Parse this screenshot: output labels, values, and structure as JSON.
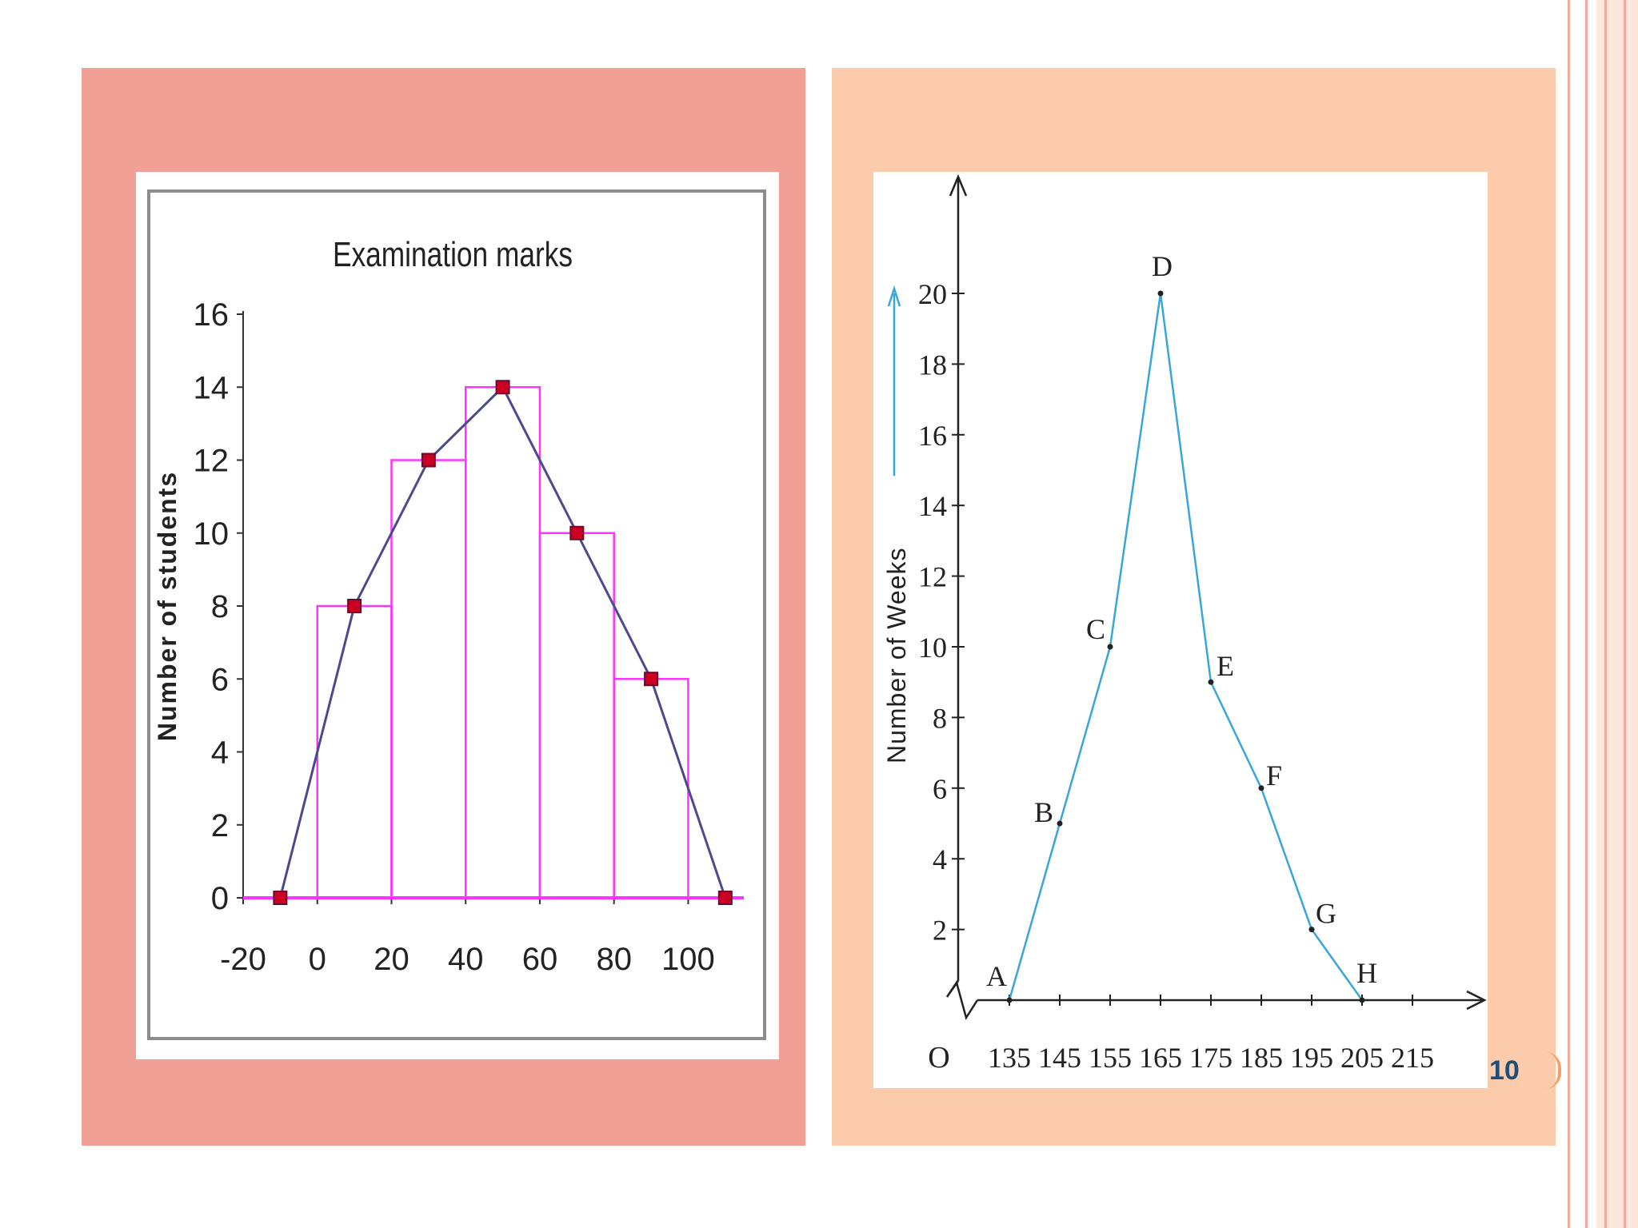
{
  "colors": {
    "page_background": "#ffffff",
    "left_panel": "#f0a094",
    "right_panel": "#fbcbab",
    "edge_lines": "#f0a090",
    "histogram_bars": "#ff33ff",
    "polygon_line": "#4a4a8c",
    "polygon_markers": "#cc0022",
    "weeks_line": "#3aa6d8",
    "page_number": "#1f4e79"
  },
  "slide": {
    "page_number": "10"
  },
  "chart_data": [
    {
      "type": "bar",
      "title": "Examination marks",
      "xlabel": "",
      "ylabel": "Number of students",
      "x_ticks": [
        "-20",
        "0",
        "20",
        "40",
        "60",
        "80",
        "100"
      ],
      "y_ticks": [
        "0",
        "2",
        "4",
        "6",
        "8",
        "10",
        "12",
        "14",
        "16"
      ],
      "xlim": [
        -20,
        115
      ],
      "ylim": [
        0,
        16
      ],
      "bars": [
        {
          "from": 0,
          "to": 20,
          "value": 8
        },
        {
          "from": 20,
          "to": 40,
          "value": 12
        },
        {
          "from": 40,
          "to": 60,
          "value": 14
        },
        {
          "from": 60,
          "to": 80,
          "value": 10
        },
        {
          "from": 80,
          "to": 100,
          "value": 6
        }
      ],
      "polygon": [
        {
          "x": -10,
          "y": 0
        },
        {
          "x": 10,
          "y": 8
        },
        {
          "x": 30,
          "y": 12
        },
        {
          "x": 50,
          "y": 14
        },
        {
          "x": 70,
          "y": 10
        },
        {
          "x": 90,
          "y": 6
        },
        {
          "x": 110,
          "y": 0
        }
      ],
      "grid": false
    },
    {
      "type": "line",
      "ylabel": "Number of Weeks",
      "origin_label": "O",
      "x_ticks": [
        "135",
        "145",
        "155",
        "165",
        "175",
        "185",
        "195",
        "205",
        "215"
      ],
      "y_ticks": [
        "2",
        "4",
        "6",
        "8",
        "10",
        "12",
        "14",
        "16",
        "18",
        "20"
      ],
      "xlim": [
        125,
        228
      ],
      "ylim": [
        0,
        24
      ],
      "axis_break": true,
      "points": [
        {
          "label": "A",
          "x": 135,
          "y": 0
        },
        {
          "label": "B",
          "x": 145,
          "y": 5
        },
        {
          "label": "C",
          "x": 155,
          "y": 10
        },
        {
          "label": "D",
          "x": 165,
          "y": 20
        },
        {
          "label": "E",
          "x": 175,
          "y": 9
        },
        {
          "label": "F",
          "x": 185,
          "y": 6
        },
        {
          "label": "G",
          "x": 195,
          "y": 2
        },
        {
          "label": "H",
          "x": 205,
          "y": 0
        }
      ],
      "grid": false
    }
  ]
}
